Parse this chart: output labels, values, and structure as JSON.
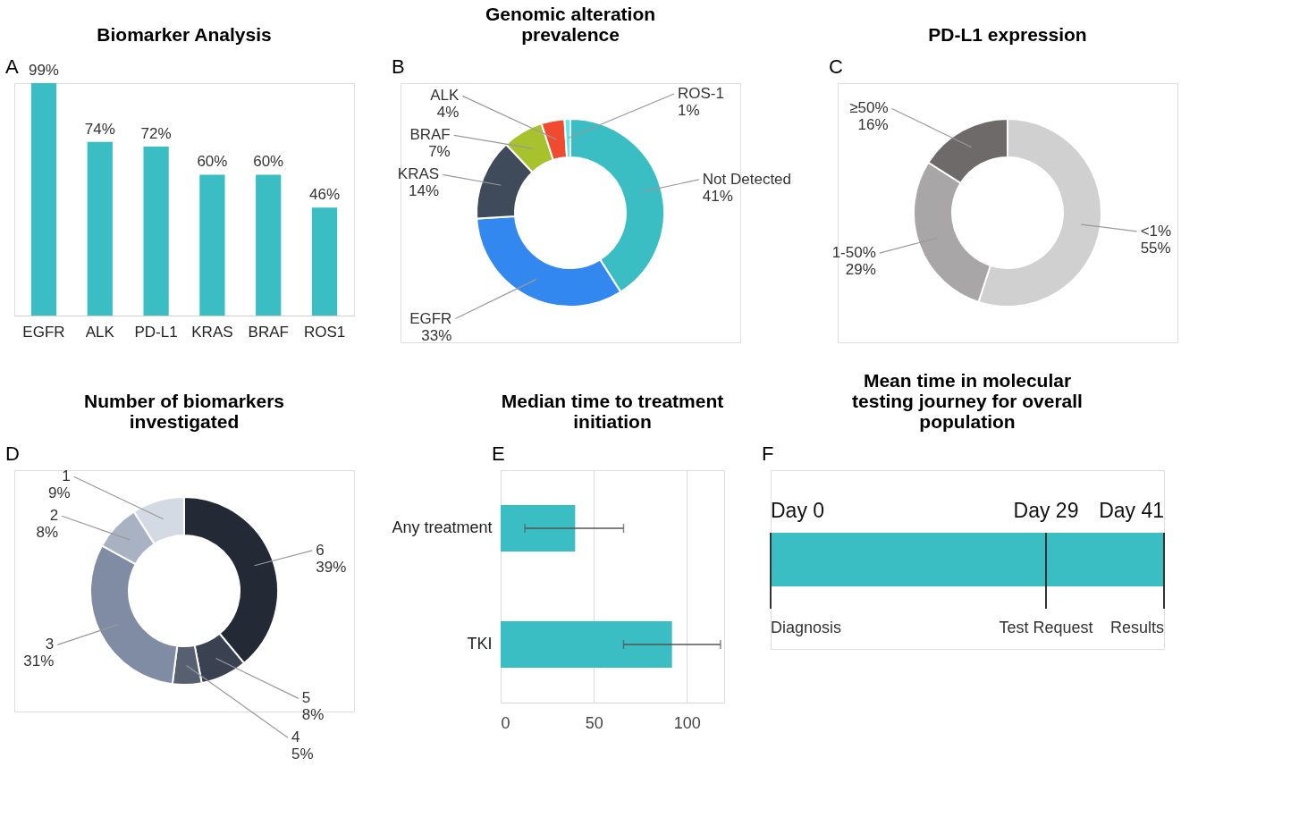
{
  "chart_data": [
    {
      "type": "bar",
      "title": "Biomarker Analysis",
      "annotations": [
        "A"
      ],
      "categories": [
        "EGFR",
        "ALK",
        "PD-L1",
        "KRAS",
        "BRAF",
        "ROS1"
      ],
      "values": [
        99,
        74,
        72,
        60,
        60,
        46
      ],
      "value_labels": [
        "99%",
        "74%",
        "72%",
        "60%",
        "60%",
        "46%"
      ],
      "color": "#3bbdc4"
    },
    {
      "type": "donut",
      "title": "Genomic alteration prevalence",
      "annotations": [
        "B"
      ],
      "categories": [
        "Not Detected",
        "EGFR",
        "KRAS",
        "BRAF",
        "ALK",
        "ROS-1"
      ],
      "values": [
        41,
        33,
        14,
        7,
        4,
        1
      ],
      "value_labels": [
        "41%",
        "33%",
        "14%",
        "7%",
        "4%",
        "1%"
      ],
      "colors": [
        "#3bbdc4",
        "#3388f0",
        "#3f4a5a",
        "#a8c22e",
        "#f04a30",
        "#5ce8f0"
      ]
    },
    {
      "type": "donut",
      "title": "PD-L1 expression",
      "annotations": [
        "C"
      ],
      "categories": [
        "<1%",
        "1-50%",
        "≥50%"
      ],
      "values": [
        55,
        29,
        16
      ],
      "value_labels": [
        "55%",
        "29%",
        "16%"
      ],
      "colors": [
        "#d0d0d0",
        "#a8a6a6",
        "#6e6a6a"
      ]
    },
    {
      "type": "donut",
      "title": "Number of biomarkers investigated",
      "annotations": [
        "D"
      ],
      "categories": [
        "6",
        "5",
        "4",
        "3",
        "2",
        "1"
      ],
      "values": [
        39,
        8,
        5,
        31,
        8,
        9
      ],
      "value_labels": [
        "39%",
        "8%",
        "5%",
        "31%",
        "8%",
        "9%"
      ],
      "colors": [
        "#232935",
        "#3a4150",
        "#566070",
        "#7f8ca3",
        "#a8b2c2",
        "#d4dae3"
      ]
    },
    {
      "type": "bar",
      "orientation": "horizontal",
      "title": "Median time to treatment initiation",
      "annotations": [
        "E"
      ],
      "categories": [
        "Any treatment",
        "TKI"
      ],
      "values": [
        40,
        92
      ],
      "errors": [
        [
          13,
          66
        ],
        [
          66,
          118
        ]
      ],
      "color": "#3bbdc4",
      "xlim": [
        0,
        120
      ],
      "xticks": [
        0,
        50,
        100
      ],
      "grid": "x"
    },
    {
      "type": "other",
      "title": "Mean time in molecular testing journey for overall population",
      "annotations": [
        "F",
        "Day 0",
        "Day 29",
        "Day 41",
        "Diagnosis",
        "Test Request",
        "Results"
      ]
    }
  ]
}
